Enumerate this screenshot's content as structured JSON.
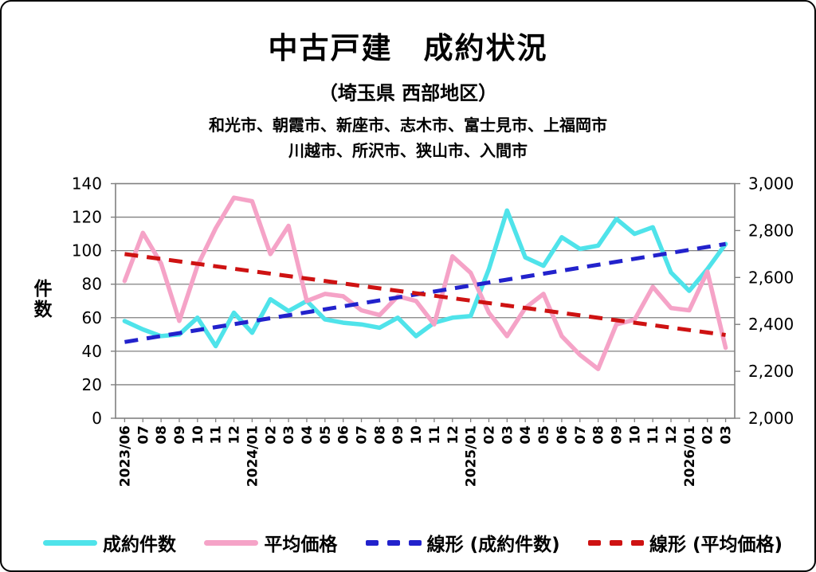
{
  "header": {
    "title": "中古戸建　成約状況",
    "subtitle": "（埼玉県 西部地区）",
    "region_line1": "和光市、朝霞市、新座市、志木市、富士見市、上福岡市",
    "region_line2": "川越市、所沢市、狭山市、入間市"
  },
  "chart_data": {
    "type": "line",
    "title": "中古戸建 成約状況（埼玉県 西部地区）",
    "x": [
      "2023/06",
      "07",
      "08",
      "09",
      "10",
      "11",
      "12",
      "2024/01",
      "02",
      "03",
      "04",
      "05",
      "06",
      "07",
      "08",
      "09",
      "10",
      "11",
      "12",
      "2025/01",
      "02",
      "03",
      "04",
      "05",
      "06",
      "07",
      "08",
      "09",
      "10",
      "11",
      "12",
      "2026/01",
      "02",
      "03"
    ],
    "series": [
      {
        "name": "成約件数",
        "axis": "left",
        "style": "solid",
        "color": "#4FE3EA",
        "values": [
          58,
          53,
          49,
          50,
          60,
          43,
          63,
          51,
          71,
          64,
          70,
          59,
          57,
          56,
          54,
          60,
          49,
          57,
          60,
          61,
          89,
          124,
          96,
          91,
          108,
          101,
          103,
          119,
          110,
          114,
          87,
          76,
          89,
          104
        ]
      },
      {
        "name": "平均価格",
        "axis": "right",
        "style": "solid",
        "color": "#F5A3C7",
        "values": [
          2585,
          2790,
          2660,
          2415,
          2650,
          2810,
          2940,
          2925,
          2700,
          2820,
          2500,
          2530,
          2520,
          2460,
          2440,
          2520,
          2500,
          2400,
          2690,
          2620,
          2450,
          2350,
          2470,
          2530,
          2350,
          2270,
          2210,
          2400,
          2420,
          2560,
          2470,
          2460,
          2625,
          2300
        ]
      },
      {
        "name": "線形 (成約件数)",
        "axis": "left",
        "style": "dashed",
        "color": "#2222CC",
        "trend": [
          45.5,
          104
        ]
      },
      {
        "name": "線形 (平均価格)",
        "axis": "right",
        "style": "dashed",
        "color": "#CE1212",
        "trend": [
          2700,
          2355
        ]
      }
    ],
    "left_axis": {
      "title": "件数",
      "min": 0,
      "max": 140,
      "tick_labels": [
        "140",
        "120",
        "100",
        "80",
        "60",
        "40",
        "20",
        "0"
      ]
    },
    "right_axis": {
      "min": 2000,
      "max": 3000,
      "tick_labels": [
        "3,000",
        "2,800",
        "2,600",
        "2,400",
        "2,200",
        "2,000"
      ]
    },
    "grid": true,
    "grid_color": "#808080",
    "legend_position": "bottom"
  }
}
